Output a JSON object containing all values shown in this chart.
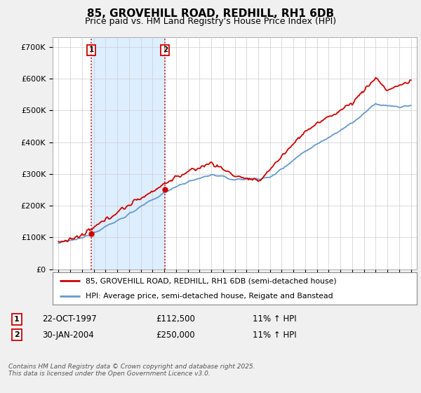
{
  "title": "85, GROVEHILL ROAD, REDHILL, RH1 6DB",
  "subtitle": "Price paid vs. HM Land Registry's House Price Index (HPI)",
  "ylabel_ticks": [
    "£0",
    "£100K",
    "£200K",
    "£300K",
    "£400K",
    "£500K",
    "£600K",
    "£700K"
  ],
  "ytick_values": [
    0,
    100000,
    200000,
    300000,
    400000,
    500000,
    600000,
    700000
  ],
  "ylim": [
    0,
    730000
  ],
  "xlim_start": 1994.5,
  "xlim_end": 2025.5,
  "xticks": [
    1995,
    1996,
    1997,
    1998,
    1999,
    2000,
    2001,
    2002,
    2003,
    2004,
    2005,
    2006,
    2007,
    2008,
    2009,
    2010,
    2011,
    2012,
    2013,
    2014,
    2015,
    2016,
    2017,
    2018,
    2019,
    2020,
    2021,
    2022,
    2023,
    2024,
    2025
  ],
  "sale1_x": 1997.81,
  "sale1_y": 112500,
  "sale1_label": "1",
  "sale1_date": "22-OCT-1997",
  "sale1_price": "£112,500",
  "sale1_hpi": "11% ↑ HPI",
  "sale2_x": 2004.08,
  "sale2_y": 250000,
  "sale2_label": "2",
  "sale2_date": "30-JAN-2004",
  "sale2_price": "£250,000",
  "sale2_hpi": "11% ↑ HPI",
  "legend_line1": "85, GROVEHILL ROAD, REDHILL, RH1 6DB (semi-detached house)",
  "legend_line2": "HPI: Average price, semi-detached house, Reigate and Banstead",
  "price_color": "#cc0000",
  "hpi_color": "#6699cc",
  "shade_color": "#ddeeff",
  "footer": "Contains HM Land Registry data © Crown copyright and database right 2025.\nThis data is licensed under the Open Government Licence v3.0.",
  "bg_color": "#f0f0f0",
  "plot_bg_color": "#ffffff",
  "grid_color": "#cccccc"
}
